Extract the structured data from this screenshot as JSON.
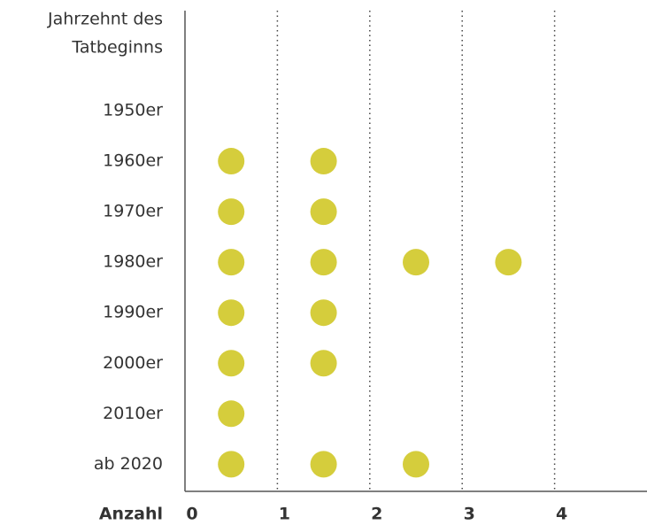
{
  "chart_data": {
    "type": "dot",
    "y_axis_label": [
      "Jahrzehnt des",
      "Tatbeginns"
    ],
    "x_axis_label": "Anzahl",
    "categories": [
      "1950er",
      "1960er",
      "1970er",
      "1980er",
      "1990er",
      "2000er",
      "2010er",
      "ab 2020"
    ],
    "values": [
      0,
      2,
      2,
      4,
      2,
      2,
      1,
      3
    ],
    "color": "#d5cd3c",
    "xlim": [
      0,
      5
    ],
    "xticks": [
      0,
      1,
      2,
      3,
      4
    ],
    "grid": true
  }
}
